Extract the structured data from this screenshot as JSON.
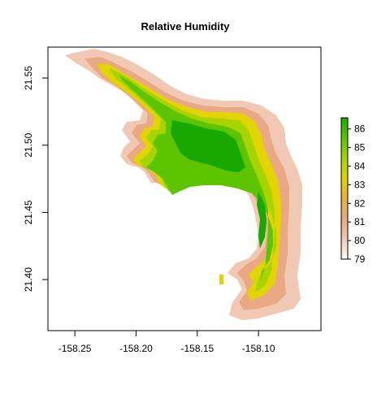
{
  "title": "Relative Humidity",
  "map": {
    "x_ticks": [
      "-158.25",
      "-158.20",
      "-158.15",
      "-158.10"
    ],
    "y_ticks": [
      "21.40",
      "21.45",
      "21.50",
      "21.55"
    ],
    "xlim": [
      -158.272,
      -158.049
    ],
    "ylim": [
      21.362,
      21.573
    ],
    "raster_variable": "Relative Humidity"
  },
  "legend": {
    "ticks": [
      "79",
      "80",
      "81",
      "82",
      "83",
      "84",
      "85",
      "86"
    ],
    "range": [
      79,
      86.6
    ],
    "colors": [
      "#ffffff",
      "#f0c8b4",
      "#e9a984",
      "#e6b140",
      "#e2d400",
      "#a6d400",
      "#5cc500",
      "#18a800"
    ]
  }
}
